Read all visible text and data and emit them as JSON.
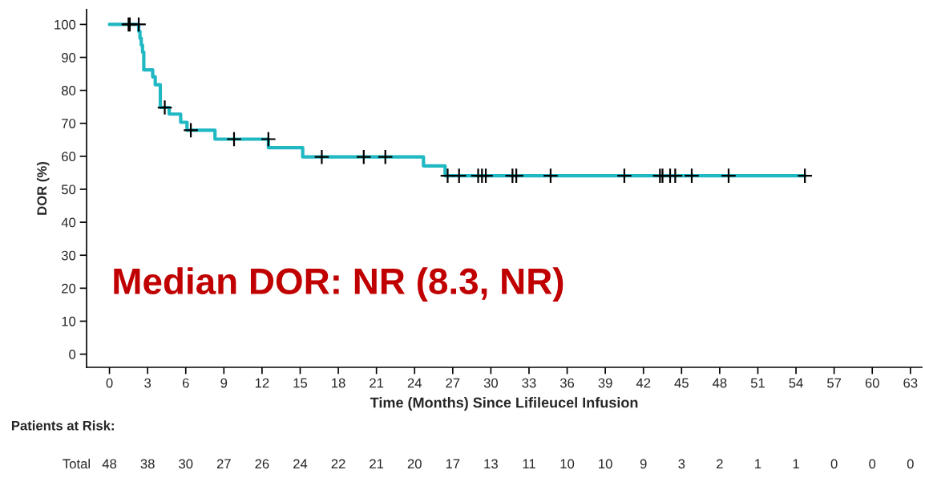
{
  "chart_data": {
    "type": "step",
    "ylabel": "DOR (%)",
    "xlabel": "Time (Months) Since Lifileucel Infusion",
    "xlim": [
      -1.8,
      63.9
    ],
    "ylim": [
      -4,
      104.5
    ],
    "xticks": [
      0,
      3,
      6,
      9,
      12,
      15,
      18,
      21,
      24,
      27,
      30,
      33,
      36,
      39,
      42,
      45,
      48,
      51,
      54,
      57,
      60,
      63
    ],
    "yticks": [
      0,
      10,
      20,
      30,
      40,
      50,
      60,
      70,
      80,
      90,
      100
    ],
    "grid": false,
    "legend": false,
    "series": [
      {
        "color": "#1fb8c3",
        "line_style": "solid",
        "marker": "none",
        "x": [
          0,
          2.3,
          2.4,
          2.5,
          2.6,
          2.7,
          3.4,
          3.6,
          4.0,
          4.7,
          5.6,
          6.1,
          8.3,
          12.5,
          15.2,
          24.7,
          26.4,
          54.7
        ],
        "values": [
          100,
          97.9,
          95.8,
          93.7,
          91.6,
          86.2,
          84.1,
          81.7,
          74.8,
          72.8,
          70.3,
          67.9,
          65.2,
          62.6,
          59.8,
          57.1,
          54.1,
          54.1
        ]
      },
      {
        "type": "scatter",
        "color": "#000000",
        "marker": "cross",
        "x": [
          1.5,
          1.6,
          2.3,
          4.35,
          6.4,
          9.8,
          12.5,
          16.7,
          20.0,
          21.7,
          26.6,
          27.5,
          29.0,
          29.3,
          29.6,
          31.7,
          32.0,
          34.7,
          40.5,
          43.3,
          43.5,
          44.1,
          44.5,
          45.8,
          48.7,
          54.7
        ],
        "values": [
          100,
          100,
          100,
          74.8,
          67.9,
          65.2,
          65.2,
          59.8,
          59.8,
          59.8,
          54.1,
          54.1,
          54.1,
          54.1,
          54.1,
          54.1,
          54.1,
          54.1,
          54.1,
          54.1,
          54.1,
          54.1,
          54.1,
          54.1,
          54.1,
          54.1
        ]
      }
    ],
    "annotations": [
      "Median DOR: NR (8.3, NR)",
      "Patients at Risk:",
      "Total",
      "48",
      "38",
      "30",
      "27",
      "26",
      "24",
      "22",
      "21",
      "20",
      "17",
      "13",
      "11",
      "10",
      "10",
      "9",
      "3",
      "2",
      "1",
      "1",
      "0",
      "0",
      "0"
    ]
  }
}
